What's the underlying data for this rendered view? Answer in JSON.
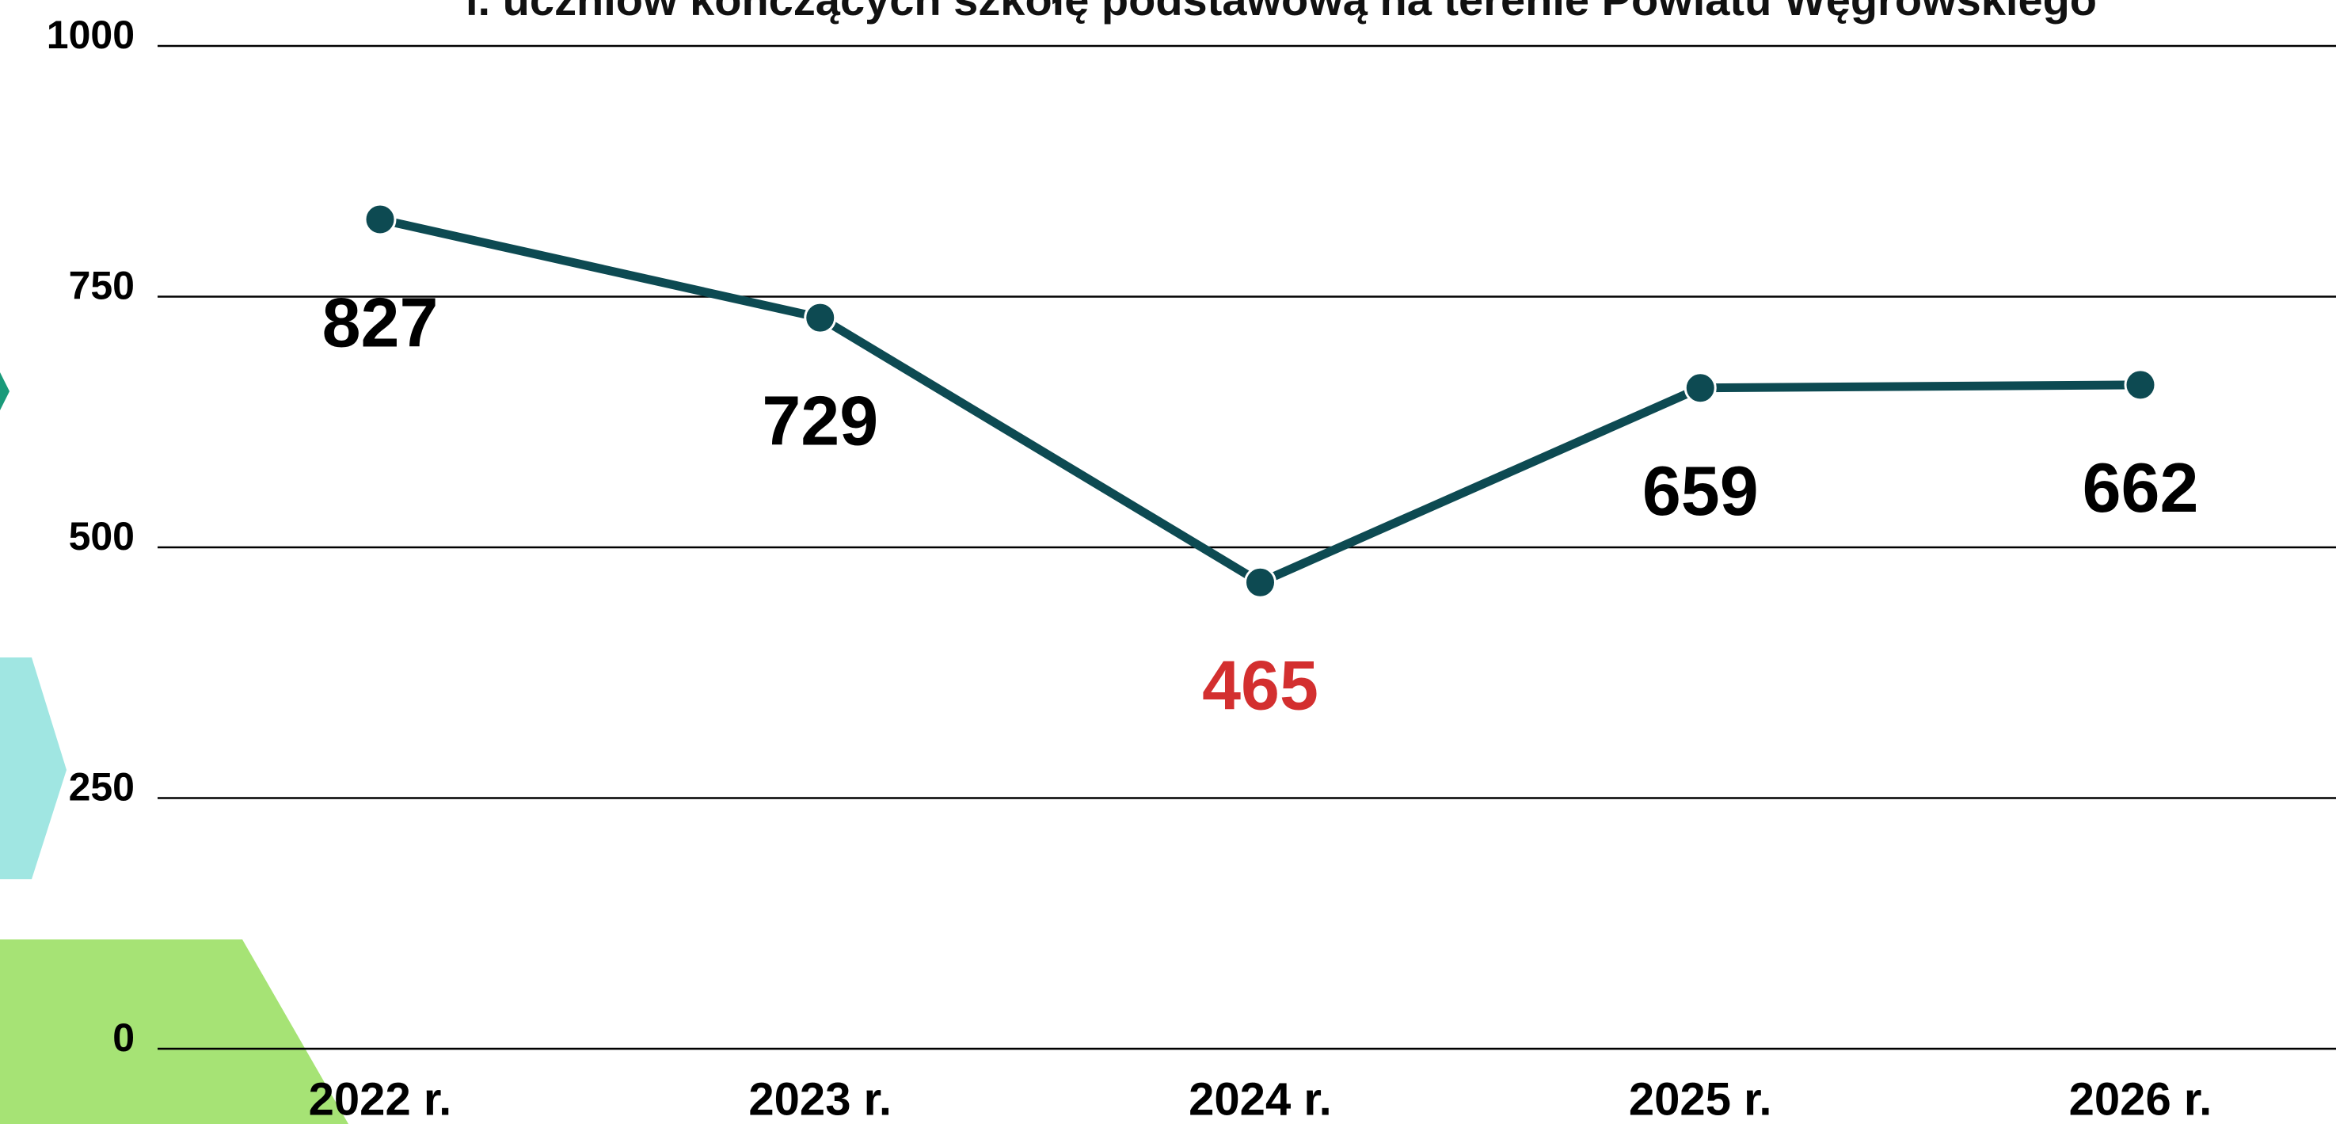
{
  "chart_data": {
    "type": "line",
    "title": "l. uczniów kończących szkołę podstawową na terenie Powiatu Węgrowskiego",
    "categories": [
      "2022 r.",
      "2023 r.",
      "2024 r.",
      "2025 r.",
      "2026 r."
    ],
    "values": [
      827,
      729,
      465,
      659,
      662
    ],
    "color": "#0d4a52",
    "value_label_colors": [
      "#000000",
      "#000000",
      "#d32f2f",
      "#000000",
      "#000000"
    ],
    "ylim": [
      0,
      1000
    ],
    "yticks": [
      0,
      250,
      500,
      750,
      1000
    ],
    "grid": true
  }
}
